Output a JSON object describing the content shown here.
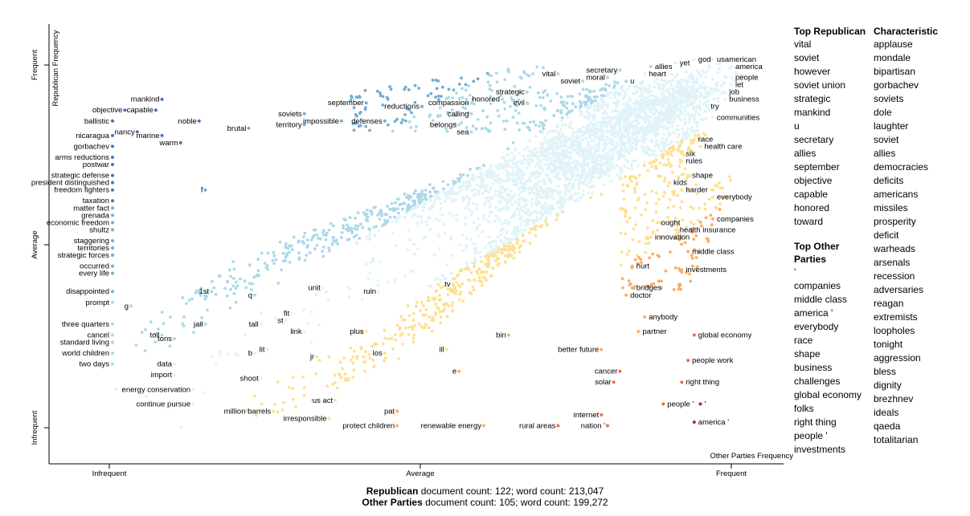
{
  "chart_data": {
    "type": "scatter",
    "title": "",
    "xlabel": "Other Parties Frequency",
    "ylabel": "Republican Frequency",
    "x_ticks": [
      "Infrequent",
      "Average",
      "Frequent"
    ],
    "y_ticks": [
      "Infrequent",
      "Average",
      "Frequent"
    ],
    "xlim": [
      0,
      1
    ],
    "ylim": [
      0,
      1
    ],
    "grid": false,
    "color_scale": [
      "#d7191c",
      "#f46d43",
      "#fdae61",
      "#fee090",
      "#e0f3f8",
      "#abd9e9",
      "#74add1",
      "#4575b4",
      "#313695"
    ],
    "labeled_points": [
      {
        "label": "mankind",
        "x": 0.08,
        "y": 0.91
      },
      {
        "label": "objective",
        "x": 0.02,
        "y": 0.88
      },
      {
        "label": "capable",
        "x": 0.07,
        "y": 0.88
      },
      {
        "label": "noble",
        "x": 0.14,
        "y": 0.85
      },
      {
        "label": "ballistic",
        "x": 0.0,
        "y": 0.85
      },
      {
        "label": "brutal",
        "x": 0.22,
        "y": 0.83
      },
      {
        "label": "soviets",
        "x": 0.31,
        "y": 0.87
      },
      {
        "label": "territory",
        "x": 0.31,
        "y": 0.84
      },
      {
        "label": "september",
        "x": 0.41,
        "y": 0.9
      },
      {
        "label": "impossible",
        "x": 0.37,
        "y": 0.85
      },
      {
        "label": "defenses",
        "x": 0.44,
        "y": 0.85
      },
      {
        "label": "reductions",
        "x": 0.5,
        "y": 0.89
      },
      {
        "label": "compassion",
        "x": 0.58,
        "y": 0.9
      },
      {
        "label": "calling",
        "x": 0.58,
        "y": 0.87
      },
      {
        "label": "belongs",
        "x": 0.56,
        "y": 0.84
      },
      {
        "label": "sea",
        "x": 0.58,
        "y": 0.82
      },
      {
        "label": "honored",
        "x": 0.63,
        "y": 0.91
      },
      {
        "label": "strategic",
        "x": 0.67,
        "y": 0.93
      },
      {
        "label": "evil",
        "x": 0.67,
        "y": 0.9
      },
      {
        "label": "vital",
        "x": 0.72,
        "y": 0.98
      },
      {
        "label": "soviet",
        "x": 0.76,
        "y": 0.96
      },
      {
        "label": "moral",
        "x": 0.8,
        "y": 0.97
      },
      {
        "label": "u",
        "x": 0.83,
        "y": 0.96
      },
      {
        "label": "secretary",
        "x": 0.82,
        "y": 0.99
      },
      {
        "label": "heart",
        "x": 0.86,
        "y": 0.98
      },
      {
        "label": "allies",
        "x": 0.87,
        "y": 1.0
      },
      {
        "label": "yet",
        "x": 0.91,
        "y": 1.01
      },
      {
        "label": "god",
        "x": 0.94,
        "y": 1.02
      },
      {
        "label": "usamerican",
        "x": 0.97,
        "y": 1.02
      },
      {
        "label": "america",
        "x": 1.0,
        "y": 1.0
      },
      {
        "label": "people",
        "x": 1.0,
        "y": 0.97
      },
      {
        "label": "let",
        "x": 1.0,
        "y": 0.95
      },
      {
        "label": "job",
        "x": 0.99,
        "y": 0.93
      },
      {
        "label": "business",
        "x": 0.99,
        "y": 0.91
      },
      {
        "label": "try",
        "x": 0.96,
        "y": 0.89
      },
      {
        "label": "communities",
        "x": 0.97,
        "y": 0.86
      },
      {
        "label": "nicaragua",
        "x": 0.0,
        "y": 0.81
      },
      {
        "label": "nancy",
        "x": 0.04,
        "y": 0.82
      },
      {
        "label": "marine",
        "x": 0.08,
        "y": 0.81
      },
      {
        "label": "gorbachev",
        "x": 0.0,
        "y": 0.78
      },
      {
        "label": "warm",
        "x": 0.11,
        "y": 0.79
      },
      {
        "label": "race",
        "x": 0.94,
        "y": 0.8
      },
      {
        "label": "health care",
        "x": 0.95,
        "y": 0.78
      },
      {
        "label": "six",
        "x": 0.92,
        "y": 0.76
      },
      {
        "label": "rules",
        "x": 0.92,
        "y": 0.74
      },
      {
        "label": "arms reductions",
        "x": 0.0,
        "y": 0.75
      },
      {
        "label": "postwar",
        "x": 0.0,
        "y": 0.73
      },
      {
        "label": "strategic defense",
        "x": 0.0,
        "y": 0.7
      },
      {
        "label": "president distinguished",
        "x": 0.0,
        "y": 0.68
      },
      {
        "label": "freedom fighters",
        "x": 0.0,
        "y": 0.66
      },
      {
        "label": "f",
        "x": 0.15,
        "y": 0.66
      },
      {
        "label": "shape",
        "x": 0.93,
        "y": 0.7
      },
      {
        "label": "kids",
        "x": 0.9,
        "y": 0.68
      },
      {
        "label": "harder",
        "x": 0.92,
        "y": 0.66
      },
      {
        "label": "everybody",
        "x": 0.97,
        "y": 0.64
      },
      {
        "label": "taxation",
        "x": 0.0,
        "y": 0.63
      },
      {
        "label": "matter fact",
        "x": 0.0,
        "y": 0.61
      },
      {
        "label": "grenada",
        "x": 0.0,
        "y": 0.59
      },
      {
        "label": "economic freedom",
        "x": 0.0,
        "y": 0.57
      },
      {
        "label": "shultz",
        "x": 0.0,
        "y": 0.55
      },
      {
        "label": "companies",
        "x": 0.97,
        "y": 0.58
      },
      {
        "label": "ought",
        "x": 0.88,
        "y": 0.57
      },
      {
        "label": "health insurance",
        "x": 0.91,
        "y": 0.55
      },
      {
        "label": "innovation",
        "x": 0.87,
        "y": 0.53
      },
      {
        "label": "staggering",
        "x": 0.0,
        "y": 0.52
      },
      {
        "label": "territories",
        "x": 0.0,
        "y": 0.5
      },
      {
        "label": "strategic forces",
        "x": 0.0,
        "y": 0.48
      },
      {
        "label": "middle class",
        "x": 0.93,
        "y": 0.49
      },
      {
        "label": "occurred",
        "x": 0.0,
        "y": 0.45
      },
      {
        "label": "every life",
        "x": 0.0,
        "y": 0.43
      },
      {
        "label": "hurt",
        "x": 0.84,
        "y": 0.45
      },
      {
        "label": "investments",
        "x": 0.92,
        "y": 0.44
      },
      {
        "label": "disappointed",
        "x": 0.0,
        "y": 0.38
      },
      {
        "label": "prompt",
        "x": 0.0,
        "y": 0.35
      },
      {
        "label": "g",
        "x": 0.03,
        "y": 0.34
      },
      {
        "label": "1st",
        "x": 0.16,
        "y": 0.38
      },
      {
        "label": "q",
        "x": 0.23,
        "y": 0.37
      },
      {
        "label": "unit",
        "x": 0.34,
        "y": 0.39
      },
      {
        "label": "ruin",
        "x": 0.43,
        "y": 0.38
      },
      {
        "label": "tv",
        "x": 0.55,
        "y": 0.4
      },
      {
        "label": "bridges",
        "x": 0.84,
        "y": 0.39
      },
      {
        "label": "doctor",
        "x": 0.83,
        "y": 0.37
      },
      {
        "label": "fit",
        "x": 0.29,
        "y": 0.32
      },
      {
        "label": "st",
        "x": 0.28,
        "y": 0.3
      },
      {
        "label": "tall",
        "x": 0.24,
        "y": 0.29
      },
      {
        "label": "jail",
        "x": 0.15,
        "y": 0.29
      },
      {
        "label": "anybody",
        "x": 0.86,
        "y": 0.31
      },
      {
        "label": "three quarters",
        "x": 0.0,
        "y": 0.29
      },
      {
        "label": "link",
        "x": 0.31,
        "y": 0.27
      },
      {
        "label": "plus",
        "x": 0.41,
        "y": 0.27
      },
      {
        "label": "partner",
        "x": 0.85,
        "y": 0.27
      },
      {
        "label": "cancel",
        "x": 0.0,
        "y": 0.26
      },
      {
        "label": "toll",
        "x": 0.08,
        "y": 0.26
      },
      {
        "label": "tons",
        "x": 0.1,
        "y": 0.25
      },
      {
        "label": "bin",
        "x": 0.64,
        "y": 0.26
      },
      {
        "label": "global economy",
        "x": 0.94,
        "y": 0.26
      },
      {
        "label": "standard living",
        "x": 0.0,
        "y": 0.24
      },
      {
        "label": "world children",
        "x": 0.0,
        "y": 0.21
      },
      {
        "label": "lit",
        "x": 0.25,
        "y": 0.22
      },
      {
        "label": "b",
        "x": 0.23,
        "y": 0.21
      },
      {
        "label": "ill",
        "x": 0.54,
        "y": 0.22
      },
      {
        "label": "los",
        "x": 0.44,
        "y": 0.21
      },
      {
        "label": "better future",
        "x": 0.79,
        "y": 0.22
      },
      {
        "label": "jr",
        "x": 0.33,
        "y": 0.2
      },
      {
        "label": "people work",
        "x": 0.93,
        "y": 0.19
      },
      {
        "label": "two days",
        "x": 0.0,
        "y": 0.18
      },
      {
        "label": "data",
        "x": 0.1,
        "y": 0.18
      },
      {
        "label": "e",
        "x": 0.56,
        "y": 0.16
      },
      {
        "label": "cancer",
        "x": 0.82,
        "y": 0.16
      },
      {
        "label": "import",
        "x": 0.1,
        "y": 0.15
      },
      {
        "label": "shoot",
        "x": 0.24,
        "y": 0.14
      },
      {
        "label": "right thing",
        "x": 0.92,
        "y": 0.13
      },
      {
        "label": "solar",
        "x": 0.81,
        "y": 0.13
      },
      {
        "label": "energy conservation",
        "x": 0.13,
        "y": 0.11
      },
      {
        "label": "us act",
        "x": 0.36,
        "y": 0.08
      },
      {
        "label": "continue pursue",
        "x": 0.13,
        "y": 0.07
      },
      {
        "label": "people '",
        "x": 0.89,
        "y": 0.07
      },
      {
        "label": "'",
        "x": 0.95,
        "y": 0.07
      },
      {
        "label": "million barrels",
        "x": 0.26,
        "y": 0.05
      },
      {
        "label": "pat",
        "x": 0.46,
        "y": 0.05
      },
      {
        "label": "internet",
        "x": 0.79,
        "y": 0.04
      },
      {
        "label": "irresponsible",
        "x": 0.35,
        "y": 0.03
      },
      {
        "label": "protect children",
        "x": 0.46,
        "y": 0.01
      },
      {
        "label": "renewable energy",
        "x": 0.6,
        "y": 0.01
      },
      {
        "label": "rural areas",
        "x": 0.72,
        "y": 0.01
      },
      {
        "label": "nation '",
        "x": 0.8,
        "y": 0.01
      },
      {
        "label": "america '",
        "x": 0.94,
        "y": 0.02
      }
    ]
  },
  "sidebar": {
    "top_republican": {
      "title": "Top Republican",
      "terms": [
        "vital",
        "soviet",
        "however",
        "soviet union",
        "strategic",
        "mankind",
        "u",
        "secretary",
        "allies",
        "september",
        "objective",
        "capable",
        "honored",
        "toward"
      ]
    },
    "top_other": {
      "title": "Top Other Parties",
      "terms": [
        "'",
        "companies",
        "middle class",
        "america '",
        "everybody",
        "race",
        "shape",
        "business",
        "challenges",
        "global economy",
        "folks",
        "right thing",
        "people '",
        "investments"
      ]
    },
    "characteristic": {
      "title": "Characteristic",
      "terms": [
        "applause",
        "mondale",
        "bipartisan",
        "gorbachev",
        "soviets",
        "dole",
        "laughter",
        "soviet",
        "allies",
        "democracies",
        "deficits",
        "americans",
        "missiles",
        "prosperity",
        "deficit",
        "warheads",
        "arsenals",
        "recession",
        "adversaries",
        "reagan",
        "extremists",
        "loopholes",
        "tonight",
        "aggression",
        "bless",
        "dignity",
        "brezhnev",
        "ideals",
        "qaeda",
        "totalitarian"
      ]
    }
  },
  "footer": {
    "line1_name": "Republican",
    "line1_text": " document count: 122; word count: 213,047",
    "line2_name": "Other Parties",
    "line2_text": " document count: 105; word count: 199,272"
  }
}
